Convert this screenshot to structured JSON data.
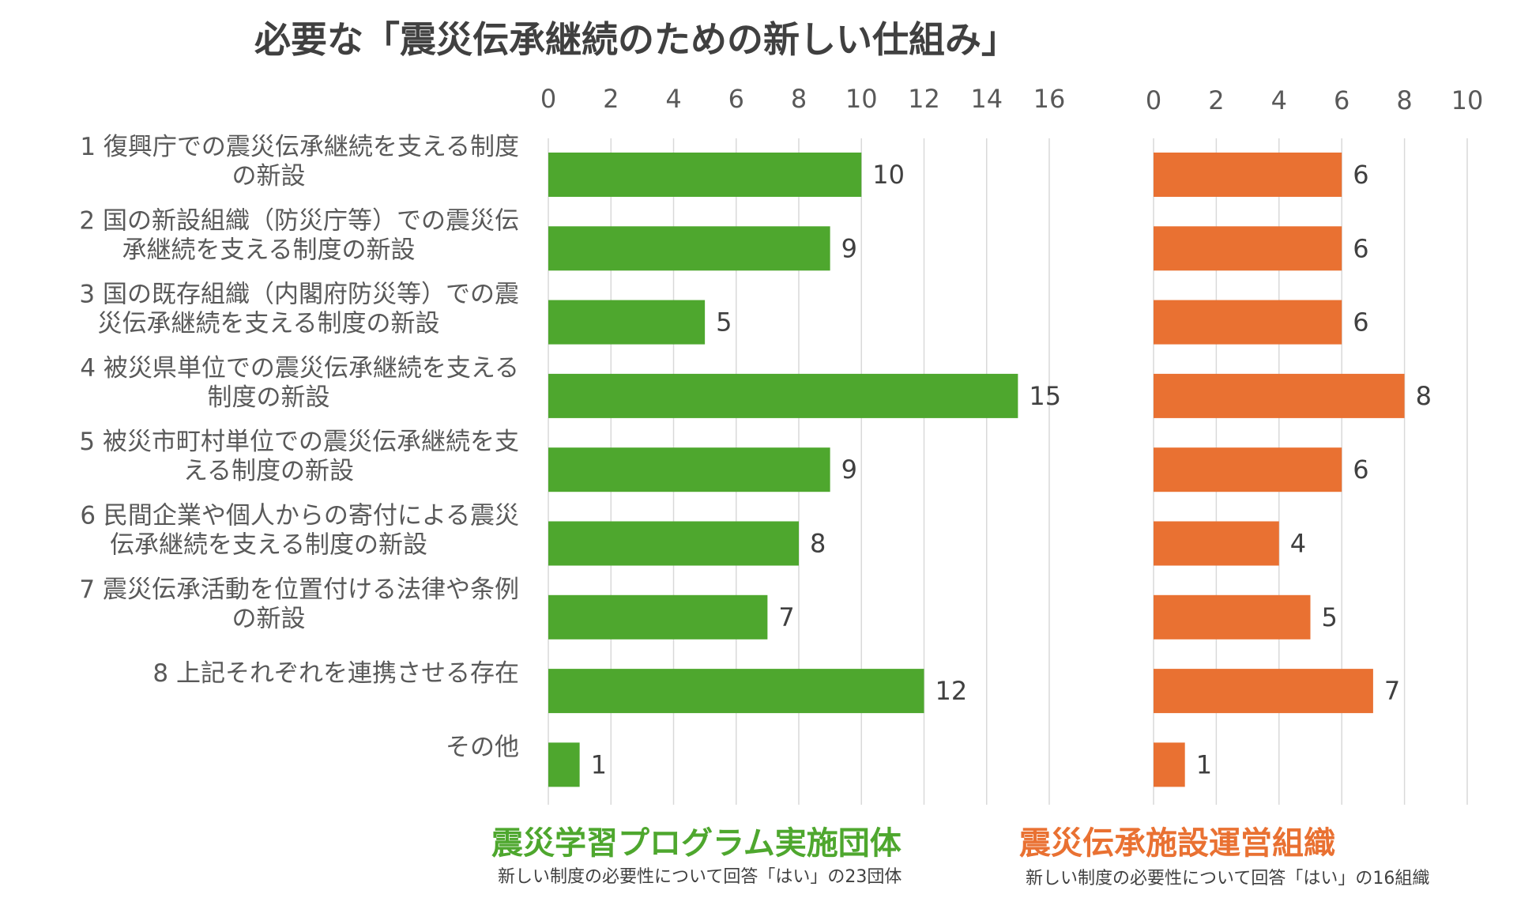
{
  "page": {
    "title": "必要な「震災伝承継続のための新しい仕組み」"
  },
  "chart_data": [
    {
      "type": "bar",
      "orientation": "horizontal",
      "title": "震災学習プログラム実施団体",
      "subtitle": "新しい制度の必要性について回答「はい」の23団体",
      "color": "#4ea72e",
      "xlim": [
        0,
        16
      ],
      "ticks": [
        "0",
        "2",
        "4",
        "6",
        "8",
        "10",
        "12",
        "14",
        "16"
      ],
      "grid": true,
      "categories": [
        [
          "1 復興庁での震災伝承継続を支える制度",
          "の新設"
        ],
        [
          "2 国の新設組織（防災庁等）での震災伝",
          "承継続を支える制度の新設"
        ],
        [
          "3 国の既存組織（内閣府防災等）での震",
          "災伝承継続を支える制度の新設"
        ],
        [
          "4 被災県単位での震災伝承継続を支える",
          "制度の新設"
        ],
        [
          "5 被災市町村単位での震災伝承継続を支",
          "える制度の新設"
        ],
        [
          "6 民間企業や個人からの寄付による震災",
          "伝承継続を支える制度の新設"
        ],
        [
          "7 震災伝承活動を位置付ける法律や条例",
          "の新設"
        ],
        [
          "8 上記それぞれを連携させる存在"
        ],
        [
          "その他"
        ]
      ],
      "values": [
        10,
        9,
        5,
        15,
        9,
        8,
        7,
        12,
        1
      ]
    },
    {
      "type": "bar",
      "orientation": "horizontal",
      "title": "震災伝承施設運営組織",
      "subtitle": "新しい制度の必要性について回答「はい」の16組織",
      "color": "#e97132",
      "xlim": [
        0,
        10
      ],
      "ticks": [
        "0",
        "2",
        "4",
        "6",
        "8",
        "10"
      ],
      "grid": true,
      "values": [
        6,
        6,
        6,
        8,
        6,
        4,
        5,
        7,
        1
      ]
    }
  ]
}
